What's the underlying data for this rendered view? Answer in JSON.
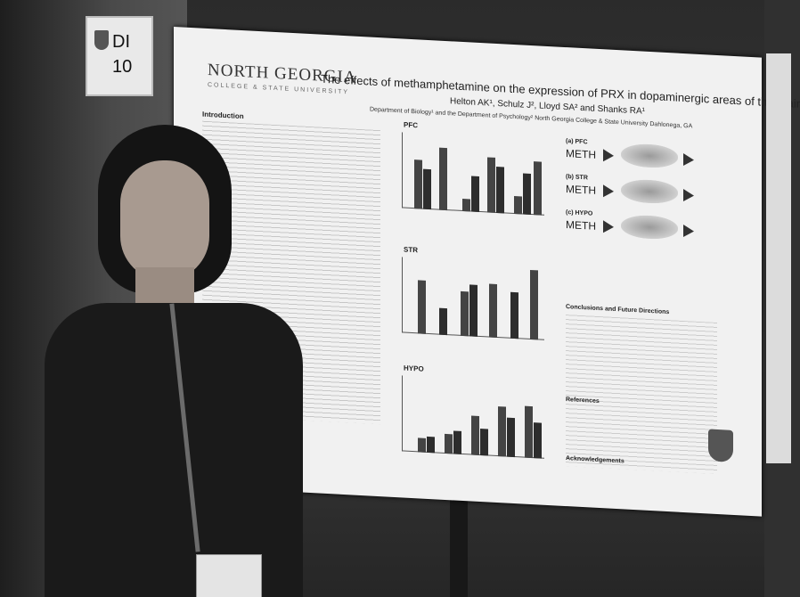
{
  "sign": {
    "prefix": "DI",
    "number": "10"
  },
  "poster": {
    "logo": "NORTH GEORGIA",
    "logo_sub": "COLLEGE & STATE UNIVERSITY",
    "title": "The effects of methamphetamine on the expression of PRX in dopaminergic areas of the brain",
    "authors": "Helton AK¹, Schulz J², Lloyd SA² and Shanks RA¹",
    "department": "Department of Biology¹ and the Department of Psychology² North Georgia College & State University Dahlonega, GA",
    "intro_heading": "Introduction",
    "panels": {
      "pfc": "PFC",
      "str": "STR",
      "hypo": "HYPO"
    },
    "diagram": [
      {
        "label": "(a) PFC",
        "drug": "METH"
      },
      {
        "label": "(b) STR",
        "drug": "METH"
      },
      {
        "label": "(c) HYPO",
        "drug": "METH"
      }
    ],
    "conclusions_heading": "Conclusions and Future Directions",
    "references_heading": "References",
    "acknowledgements_heading": "Acknowledgements"
  },
  "colors": {
    "poster": "#f1f1f1",
    "background": "#2b2b2b",
    "bars": "#444444"
  }
}
